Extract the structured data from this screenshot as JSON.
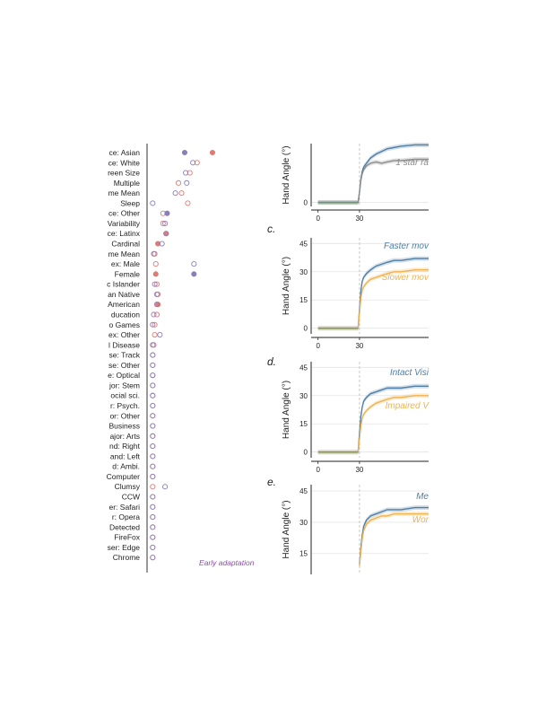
{
  "colors": {
    "blue": "#4f7fa6",
    "orange": "#f0b352",
    "gray": "#8c8c8c",
    "green": "#6b9f50",
    "red_dot": "#e07b73",
    "purple_dot": "#8a7fb8",
    "purple_text": "#8a4fa8"
  },
  "chart_data": [
    {
      "type": "scatter",
      "categories": [
        "ce: Asian",
        "ce: White",
        "reen Size",
        "Multiple",
        "me Mean",
        "Sleep",
        "ce: Other",
        "Variability",
        "ce: Latinx",
        "Cardinal",
        "me Mean",
        "ex: Male",
        "Female",
        "c Islander",
        "an Native",
        "American",
        "ducation",
        "o Games",
        "ex: Other",
        "l Disease",
        "se: Track",
        "se: Other",
        "e: Optical",
        "jor: Stem",
        "ocial sci.",
        "r: Psych.",
        "or: Other",
        "Business",
        "ajor: Arts",
        "nd: Right",
        "and: Left",
        "d: Ambi.",
        "Computer",
        "Clumsy",
        "CCW",
        "er: Safari",
        "r: Opera",
        "Detected",
        "FireFox",
        "ser: Edge",
        "Chrome"
      ],
      "series": [
        {
          "values": [
            0.6,
            0.45,
            0.38,
            0.27,
            0.3,
            0.36,
            0.12,
            0.12,
            0.15,
            0.07,
            0.04,
            0.05,
            0.05,
            0.06,
            0.07,
            0.07,
            0.06,
            0.04,
            0.04,
            0.03,
            0.02,
            0.02,
            0.02,
            0.02,
            0.02,
            0.02,
            0.02,
            0.02,
            0.02,
            0.02,
            0.02,
            0.02,
            0.02,
            0.02,
            0.02,
            0.02,
            0.02,
            0.02,
            0.02,
            0.02,
            0.02
          ]
        },
        {
          "values": [
            0.33,
            0.41,
            0.34,
            0.35,
            0.24,
            0.02,
            0.16,
            0.14,
            0.15,
            0.11,
            0.03,
            0.42,
            0.42,
            0.04,
            0.06,
            0.06,
            0.03,
            0.02,
            0.09,
            0.02,
            0.02,
            0.02,
            0.02,
            0.02,
            0.02,
            0.02,
            0.02,
            0.02,
            0.02,
            0.02,
            0.02,
            0.02,
            0.02,
            0.14,
            0.02,
            0.02,
            0.02,
            0.02,
            0.02,
            0.02,
            0.02
          ]
        }
      ],
      "annotations": [
        "Early adaptation"
      ]
    },
    {
      "type": "line",
      "ylabel": "Hand Angle (°)",
      "xlim": [
        -5,
        80
      ],
      "ylim": [
        -3,
        45
      ],
      "xticks": [
        0,
        30
      ],
      "yticks": [
        0
      ],
      "series": [
        {
          "color_key": "blue",
          "x": [
            0,
            29,
            30,
            31,
            32,
            33,
            35,
            38,
            42,
            46,
            50,
            55,
            60,
            70,
            80
          ],
          "y": [
            0,
            0,
            8,
            18,
            24,
            27,
            30,
            34,
            37,
            39,
            41,
            42,
            43,
            44,
            44
          ]
        },
        {
          "color_key": "gray",
          "x": [
            0,
            29,
            30,
            31,
            32,
            33,
            35,
            38,
            42,
            46,
            50,
            55,
            60,
            70,
            80
          ],
          "y": [
            0,
            0,
            8,
            17,
            22,
            25,
            28,
            30,
            31,
            30,
            31,
            32,
            32,
            33,
            33
          ]
        }
      ],
      "annotations": [
        "1 star ra"
      ]
    },
    {
      "panel": "c.",
      "type": "line",
      "ylabel": "Hand Angle (°)",
      "xlim": [
        -5,
        80
      ],
      "ylim": [
        -3,
        48
      ],
      "xticks": [
        0,
        30
      ],
      "yticks": [
        0,
        15,
        30,
        45
      ],
      "series": [
        {
          "name": "Faster mov",
          "color_key": "blue",
          "x": [
            0,
            29,
            30,
            31,
            32,
            33,
            35,
            38,
            42,
            46,
            50,
            55,
            60,
            70,
            80
          ],
          "y": [
            0,
            0,
            10,
            20,
            25,
            27,
            29,
            31,
            33,
            34,
            35,
            36,
            36,
            37,
            37
          ]
        },
        {
          "name": "Slower mov",
          "color_key": "orange",
          "x": [
            0,
            29,
            30,
            31,
            32,
            33,
            35,
            38,
            42,
            46,
            50,
            55,
            60,
            70,
            80
          ],
          "y": [
            0,
            0,
            8,
            16,
            20,
            22,
            24,
            26,
            27,
            28,
            29,
            30,
            30,
            31,
            31
          ]
        }
      ]
    },
    {
      "panel": "d.",
      "type": "line",
      "ylabel": "Hand Angle (°)",
      "xlim": [
        -5,
        80
      ],
      "ylim": [
        -3,
        48
      ],
      "xticks": [
        0,
        30
      ],
      "yticks": [
        0,
        15,
        30,
        45
      ],
      "series": [
        {
          "name": "Intact Visi",
          "color_key": "blue",
          "x": [
            0,
            29,
            30,
            31,
            32,
            33,
            35,
            38,
            42,
            46,
            50,
            55,
            60,
            70,
            80
          ],
          "y": [
            0,
            0,
            10,
            19,
            24,
            27,
            29,
            31,
            32,
            33,
            34,
            34,
            34,
            35,
            35
          ]
        },
        {
          "name": "Impaired V",
          "color_key": "orange",
          "x": [
            0,
            29,
            30,
            31,
            32,
            33,
            35,
            38,
            42,
            46,
            50,
            55,
            60,
            70,
            80
          ],
          "y": [
            0,
            0,
            7,
            14,
            18,
            20,
            22,
            24,
            26,
            27,
            28,
            29,
            29,
            30,
            30
          ]
        }
      ]
    },
    {
      "panel": "e.",
      "type": "line",
      "ylabel": "Hand Angle (°)",
      "xlim": [
        -5,
        80
      ],
      "ylim": [
        5,
        48
      ],
      "xticks": [],
      "yticks": [
        15,
        30,
        45
      ],
      "series": [
        {
          "name": "Me",
          "color_key": "blue",
          "x": [
            30,
            31,
            32,
            33,
            35,
            38,
            42,
            46,
            50,
            55,
            60,
            70,
            80
          ],
          "y": [
            10,
            18,
            24,
            28,
            31,
            33,
            34,
            35,
            36,
            36,
            36,
            37,
            37
          ]
        },
        {
          "name": "Wor",
          "color_key": "orange",
          "x": [
            30,
            31,
            32,
            33,
            35,
            38,
            42,
            46,
            50,
            55,
            60,
            70,
            80
          ],
          "y": [
            9,
            16,
            22,
            26,
            29,
            31,
            32,
            33,
            33,
            34,
            34,
            34,
            34
          ]
        }
      ]
    }
  ]
}
